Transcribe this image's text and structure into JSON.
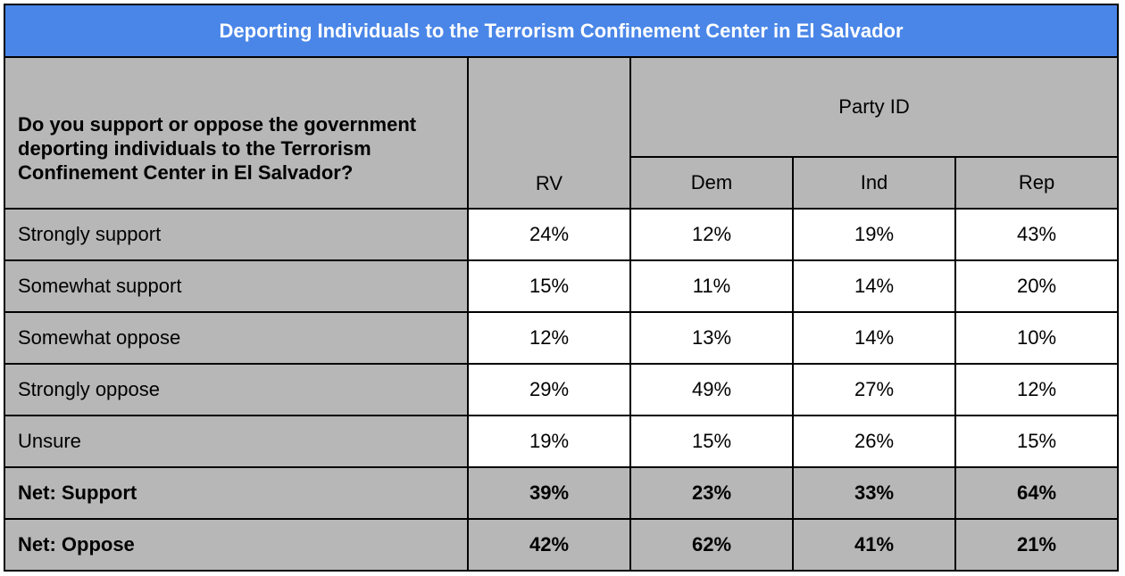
{
  "colors": {
    "title_bg": "#4a86e8",
    "title_text": "#ffffff",
    "header_bg": "#b7b7b7",
    "cell_bg": "#ffffff",
    "border": "#000000"
  },
  "table": {
    "title": "Deporting Individuals to the Terrorism Confinement Center in El Salvador",
    "question": "Do you support or oppose the government deporting individuals to the Terrorism Confinement Center in El Salvador?",
    "group_header": "Party ID"
  },
  "chart_data": {
    "type": "table",
    "title": "Deporting Individuals to the Terrorism Confinement Center in El Salvador",
    "question": "Do you support or oppose the government deporting individuals to the Terrorism Confinement Center in El Salvador?",
    "group_header": "Party ID",
    "columns": [
      "RV",
      "Dem",
      "Ind",
      "Rep"
    ],
    "rows": [
      {
        "label": "Strongly support",
        "values": [
          "24%",
          "12%",
          "19%",
          "43%"
        ],
        "net": false
      },
      {
        "label": "Somewhat support",
        "values": [
          "15%",
          "11%",
          "14%",
          "20%"
        ],
        "net": false
      },
      {
        "label": "Somewhat oppose",
        "values": [
          "12%",
          "13%",
          "14%",
          "10%"
        ],
        "net": false
      },
      {
        "label": "Strongly oppose",
        "values": [
          "29%",
          "49%",
          "27%",
          "12%"
        ],
        "net": false
      },
      {
        "label": "Unsure",
        "values": [
          "19%",
          "15%",
          "26%",
          "15%"
        ],
        "net": false
      },
      {
        "label": "Net: Support",
        "values": [
          "39%",
          "23%",
          "33%",
          "64%"
        ],
        "net": true
      },
      {
        "label": "Net: Oppose",
        "values": [
          "42%",
          "62%",
          "41%",
          "21%"
        ],
        "net": true
      }
    ]
  }
}
